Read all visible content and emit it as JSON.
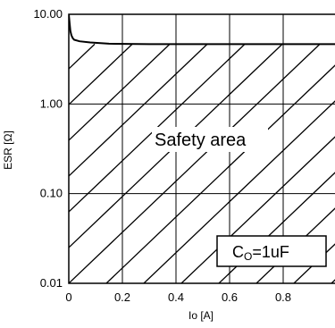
{
  "chart_data": {
    "type": "line",
    "ylabel": "ESR [Ω]",
    "xlabel": "Io [A]",
    "y_scale": "log",
    "ylim": [
      0.01,
      10
    ],
    "xlim": [
      0,
      1.0
    ],
    "grid": true,
    "x_ticks": [
      "0",
      "0.2",
      "0.4",
      "0.6",
      "0.8"
    ],
    "y_ticks": [
      "10.00",
      "1.00",
      "0.10",
      "0.01"
    ],
    "series": [
      {
        "x": [
          0.0,
          0.003,
          0.006,
          0.01,
          0.015,
          0.02,
          0.04,
          0.08,
          0.15,
          0.3,
          0.5,
          0.7,
          1.0
        ],
        "y": [
          10.0,
          8.0,
          6.5,
          5.8,
          5.4,
          5.2,
          5.0,
          4.85,
          4.7,
          4.65,
          4.65,
          4.65,
          4.65
        ]
      }
    ],
    "annotations": {
      "region_label": "Safety area",
      "condition_main": "C",
      "condition_sub": "O",
      "condition_value": "=1uF"
    }
  }
}
